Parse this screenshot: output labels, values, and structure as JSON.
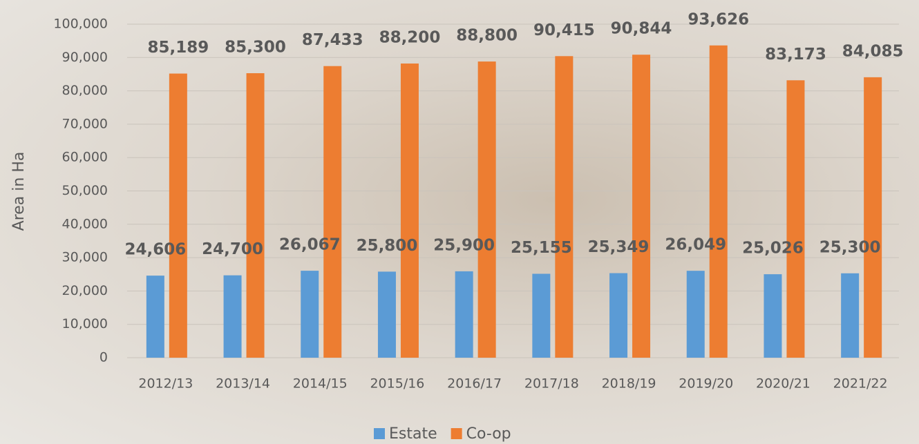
{
  "chart_data": {
    "type": "bar",
    "y_axis_label": "Area in Ha",
    "categories": [
      "2012/13",
      "2013/14",
      "2014/15",
      "2015/16",
      "2016/17",
      "2017/18",
      "2018/19",
      "2019/20",
      "2020/21",
      "2021/22"
    ],
    "series": [
      {
        "name": "Estate",
        "color": "#5b9bd5",
        "values": [
          24606,
          24700,
          26067,
          25800,
          25900,
          25155,
          25349,
          26049,
          25026,
          25300
        ],
        "value_labels": [
          "24,606",
          "24,700",
          "26,067",
          "25,800",
          "25,900",
          "25,155",
          "25,349",
          "26,049",
          "25,026",
          "25,300"
        ]
      },
      {
        "name": "Co-op",
        "color": "#ed7d31",
        "values": [
          85189,
          85300,
          87433,
          88200,
          88800,
          90415,
          90844,
          93626,
          83173,
          84085
        ],
        "value_labels": [
          "85,189",
          "85,300",
          "87,433",
          "88,200",
          "88,800",
          "90,415",
          "90,844",
          "93,626",
          "83,173",
          "84,085"
        ]
      }
    ],
    "ylim": [
      0,
      100000
    ],
    "yticks": [
      0,
      {
        "value": 10000,
        "label": "10,000"
      },
      {
        "value": 20000,
        "label": "20,000"
      },
      {
        "value": 30000,
        "label": "30,000"
      },
      {
        "value": 40000,
        "label": "40,000"
      },
      {
        "value": 50000,
        "label": "50,000"
      },
      {
        "value": 60000,
        "label": "60,000"
      },
      {
        "value": 70000,
        "label": "70,000"
      },
      {
        "value": 80000,
        "label": "80,000"
      },
      {
        "value": 90000,
        "label": "90,000"
      },
      {
        "value": 100000,
        "label": "100,000"
      }
    ],
    "grid": true,
    "legend": "bottom"
  }
}
